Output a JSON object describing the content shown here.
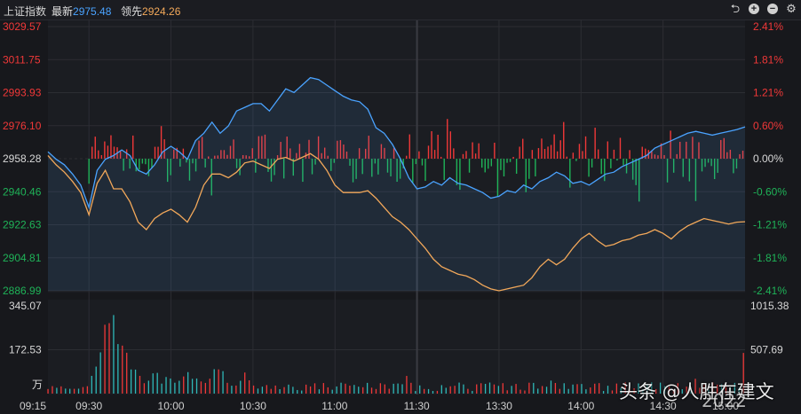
{
  "header": {
    "index_name": "上证指数",
    "latest_label": "最新",
    "latest_value": "2975.48",
    "leader_label": "领先",
    "leader_value": "2924.26",
    "tool_icons": [
      "undo-icon",
      "zoom-in-icon",
      "zoom-out-icon",
      "settings-icon"
    ]
  },
  "watermark": {
    "text": "头条 @人胜在建文",
    "year": "2022"
  },
  "colors": {
    "up": "#f03838",
    "down": "#1fb358",
    "latest_line": "#4aa3ff",
    "leader_line": "#f2a85a",
    "grid": "#2c2d33",
    "background": "#17181c"
  },
  "chart_data": [
    {
      "type": "line",
      "name": "price",
      "y_ticks_left": [
        "3029.57",
        "3011.75",
        "2993.93",
        "2976.10",
        "2958.28",
        "2940.46",
        "2922.63",
        "2904.81",
        "2886.99"
      ],
      "y_ticks_right": [
        "2.41%",
        "1.81%",
        "1.21%",
        "0.60%",
        "0.00%",
        "-0.60%",
        "-1.21%",
        "-1.81%",
        "-2.41%"
      ],
      "ylim": [
        2886.99,
        3029.57
      ],
      "prev_close": 2958.28,
      "x_ticks": [
        "09:15",
        "09:30",
        "10:00",
        "10:30",
        "11:00",
        "11:30",
        "13:30",
        "14:00",
        "14:30",
        "15:00"
      ],
      "x_tick_minutes": [
        -15,
        0,
        30,
        60,
        90,
        120,
        150,
        180,
        210,
        240
      ],
      "xlim": [
        -15,
        240
      ],
      "series": [
        {
          "name": "最新",
          "x": [
            -15,
            -12,
            -9,
            -6,
            -3,
            0,
            3,
            6,
            9,
            12,
            15,
            18,
            21,
            24,
            27,
            30,
            33,
            36,
            39,
            42,
            45,
            48,
            51,
            54,
            57,
            60,
            63,
            66,
            69,
            72,
            75,
            78,
            81,
            84,
            87,
            90,
            93,
            96,
            99,
            102,
            105,
            108,
            111,
            114,
            117,
            120,
            123,
            126,
            129,
            132,
            135,
            138,
            141,
            144,
            147,
            150,
            153,
            156,
            159,
            162,
            165,
            168,
            171,
            174,
            177,
            180,
            183,
            186,
            189,
            192,
            195,
            198,
            201,
            204,
            207,
            210,
            213,
            216,
            219,
            222,
            225,
            228,
            231,
            234,
            237,
            240
          ],
          "y": [
            2962,
            2958,
            2955,
            2950,
            2944,
            2932,
            2952,
            2958,
            2960,
            2963,
            2960,
            2952,
            2950,
            2955,
            2962,
            2965,
            2962,
            2958,
            2968,
            2972,
            2978,
            2972,
            2976,
            2984,
            2986,
            2988,
            2988,
            2984,
            2990,
            2996,
            2994,
            2998,
            3002,
            3001,
            2998,
            2995,
            2992,
            2990,
            2989,
            2985,
            2975,
            2972,
            2966,
            2958,
            2948,
            2942,
            2943,
            2946,
            2944,
            2948,
            2945,
            2944,
            2942,
            2940,
            2937,
            2938,
            2941,
            2940,
            2944,
            2942,
            2946,
            2948,
            2951,
            2949,
            2945,
            2946,
            2944,
            2947,
            2950,
            2951,
            2954,
            2956,
            2958,
            2960,
            2964,
            2966,
            2968,
            2970,
            2972,
            2973,
            2972,
            2971,
            2972,
            2973,
            2974,
            2975.48
          ]
        },
        {
          "name": "领先",
          "x": [
            -15,
            -12,
            -9,
            -6,
            -3,
            0,
            3,
            6,
            9,
            12,
            15,
            18,
            21,
            24,
            27,
            30,
            33,
            36,
            39,
            42,
            45,
            48,
            51,
            54,
            57,
            60,
            63,
            66,
            69,
            72,
            75,
            78,
            81,
            84,
            87,
            90,
            93,
            96,
            99,
            102,
            105,
            108,
            111,
            114,
            117,
            120,
            123,
            126,
            129,
            132,
            135,
            138,
            141,
            144,
            147,
            150,
            153,
            156,
            159,
            162,
            165,
            168,
            171,
            174,
            177,
            180,
            183,
            186,
            189,
            192,
            195,
            198,
            201,
            204,
            207,
            210,
            213,
            216,
            219,
            222,
            225,
            228,
            231,
            234,
            237,
            240
          ],
          "y": [
            2960,
            2955,
            2951,
            2946,
            2940,
            2928,
            2945,
            2952,
            2942,
            2942,
            2935,
            2924,
            2920,
            2926,
            2929,
            2931,
            2928,
            2924,
            2932,
            2944,
            2950,
            2950,
            2948,
            2951,
            2956,
            2957,
            2955,
            2953,
            2958,
            2959,
            2957,
            2959,
            2961,
            2958,
            2952,
            2944,
            2940,
            2940,
            2940,
            2941,
            2937,
            2932,
            2927,
            2924,
            2920,
            2915,
            2910,
            2904,
            2900,
            2898,
            2896,
            2895,
            2893,
            2890,
            2888,
            2887,
            2888,
            2889,
            2890,
            2894,
            2900,
            2904,
            2901,
            2904,
            2910,
            2915,
            2918,
            2914,
            2911,
            2912,
            2914,
            2915,
            2917,
            2918,
            2920,
            2918,
            2915,
            2919,
            2922,
            2924,
            2926,
            2925,
            2924,
            2923,
            2924,
            2924.26
          ]
        }
      ]
    },
    {
      "type": "bar",
      "name": "volume",
      "y_ticks_left": [
        "345.07",
        "172.53",
        "万"
      ],
      "y_ticks_right": [
        "1015.38",
        "507.69"
      ],
      "ylim": [
        0,
        345.07
      ]
    }
  ]
}
